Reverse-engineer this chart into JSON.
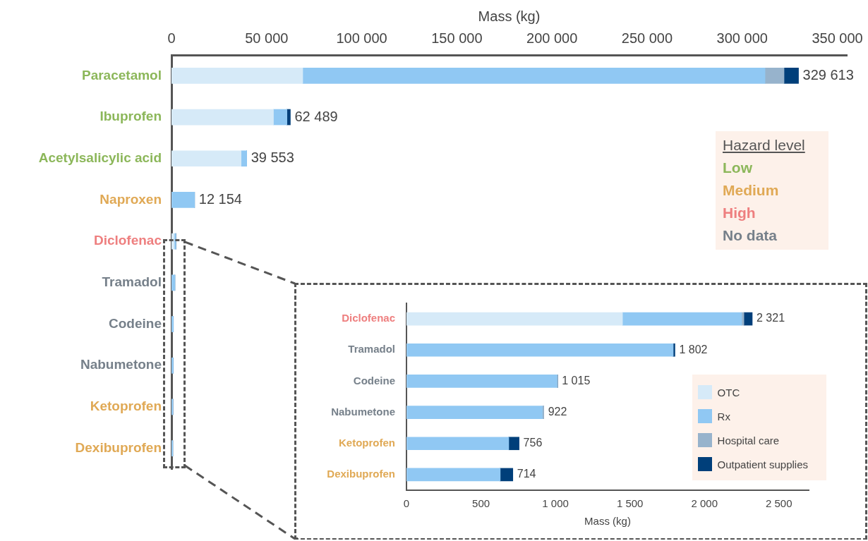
{
  "chart_data": [
    {
      "type": "bar",
      "orientation": "horizontal",
      "stacked": true,
      "xlabel": "Mass (kg)",
      "categories": [
        "Paracetamol",
        "Ibuprofen",
        "Acetylsalicylic acid",
        "Naproxen",
        "Diclofenac",
        "Tramadol",
        "Codeine",
        "Nabumetone",
        "Ketoprofen",
        "Dexibuprofen"
      ],
      "series": [
        {
          "color": "#d6eaf8",
          "values": [
            69000,
            53600,
            36600,
            0,
            1450,
            0,
            0,
            0,
            0,
            0
          ]
        },
        {
          "color": "#90c8f3",
          "values": [
            243000,
            7100,
            2953,
            12154,
            800,
            1790,
            1010,
            912,
            686,
            629
          ]
        },
        {
          "color": "#97b3cc",
          "values": [
            10000,
            0,
            0,
            0,
            15,
            0,
            null,
            null,
            0,
            0
          ]
        },
        {
          "color": "#003f7a",
          "values": [
            7613,
            1789,
            0,
            0,
            56,
            12,
            0,
            0,
            70,
            85
          ]
        }
      ],
      "xlim": [
        0,
        355000
      ],
      "xticks": [
        {
          "value": 0,
          "label": "0"
        },
        {
          "value": 50000,
          "label": "50 000"
        },
        {
          "value": 100000,
          "label": "100 000"
        },
        {
          "value": 150000,
          "label": "150 000"
        },
        {
          "value": 200000,
          "label": "200 000"
        },
        {
          "value": 250000,
          "label": "250 000"
        },
        {
          "value": 300000,
          "label": "300 000"
        },
        {
          "value": 350000,
          "label": "350 000"
        }
      ],
      "totals": [
        "329 613",
        "62 489",
        "39 553",
        "12 154",
        null,
        null,
        null,
        null,
        null,
        null
      ],
      "grid": false,
      "legend": false
    },
    {
      "type": "bar",
      "orientation": "horizontal",
      "stacked": true,
      "xlabel": "Mass (kg)",
      "categories": [
        "Diclofenac",
        "Tramadol",
        "Codeine",
        "Nabumetone",
        "Ketoprofen",
        "Dexibuprofen"
      ],
      "series": [
        {
          "name": "OTC",
          "color": "#d6eaf8",
          "values": [
            1450,
            0,
            0,
            0,
            0,
            0
          ]
        },
        {
          "name": "Rx",
          "color": "#90c8f3",
          "values": [
            800,
            1790,
            1010,
            912,
            686,
            629
          ]
        },
        {
          "name": "Hospital care",
          "color": "#97b3cc",
          "values": [
            15,
            0,
            5,
            10,
            0,
            0
          ]
        },
        {
          "name": "Outpatient supplies",
          "color": "#003f7a",
          "values": [
            56,
            12,
            0,
            0,
            70,
            85
          ]
        }
      ],
      "xlim": [
        0,
        2700
      ],
      "xticks": [
        {
          "value": 0,
          "label": "0"
        },
        {
          "value": 500,
          "label": "500"
        },
        {
          "value": 1000,
          "label": "1 000"
        },
        {
          "value": 1500,
          "label": "1 500"
        },
        {
          "value": 2000,
          "label": "2 000"
        },
        {
          "value": 2500,
          "label": "2 500"
        }
      ],
      "totals": [
        "2 321",
        "1 802",
        "1 015",
        "922",
        "756",
        "714"
      ],
      "grid": false,
      "legend": "bottom right"
    },
    {
      "type": "other",
      "title": "Hazard level",
      "annotations": [
        "Low",
        "Medium",
        "High",
        "No data"
      ]
    }
  ]
}
